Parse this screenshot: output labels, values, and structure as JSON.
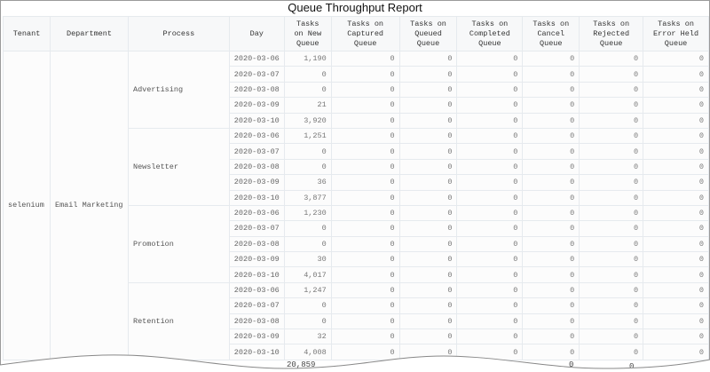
{
  "title": "Queue Throughput Report",
  "columns": [
    "Tenant",
    "Department",
    "Process",
    "Day",
    "Tasks\non New\nQueue",
    "Tasks on\nCaptured\nQueue",
    "Tasks on\nQueued\nQueue",
    "Tasks on\nCompleted\nQueue",
    "Tasks on\nCancel\nQueue",
    "Tasks on\nRejected\nQueue",
    "Tasks on\nError Held\nQueue"
  ],
  "tenant": "selenium",
  "department": "Email Marketing",
  "processes": [
    {
      "name": "Advertising",
      "rows": [
        [
          "2020-03-06",
          "1,190"
        ],
        [
          "2020-03-07",
          "0"
        ],
        [
          "2020-03-08",
          "0"
        ],
        [
          "2020-03-09",
          "21"
        ],
        [
          "2020-03-10",
          "3,920"
        ]
      ]
    },
    {
      "name": "Newsletter",
      "rows": [
        [
          "2020-03-06",
          "1,251"
        ],
        [
          "2020-03-07",
          "0"
        ],
        [
          "2020-03-08",
          "0"
        ],
        [
          "2020-03-09",
          "36"
        ],
        [
          "2020-03-10",
          "3,877"
        ]
      ]
    },
    {
      "name": "Promotion",
      "rows": [
        [
          "2020-03-06",
          "1,230"
        ],
        [
          "2020-03-07",
          "0"
        ],
        [
          "2020-03-08",
          "0"
        ],
        [
          "2020-03-09",
          "30"
        ],
        [
          "2020-03-10",
          "4,017"
        ]
      ]
    },
    {
      "name": "Retention",
      "rows": [
        [
          "2020-03-06",
          "1,247"
        ],
        [
          "2020-03-07",
          "0"
        ],
        [
          "2020-03-08",
          "0"
        ],
        [
          "2020-03-09",
          "32"
        ],
        [
          "2020-03-10",
          "4,008"
        ]
      ]
    }
  ],
  "other_queue_value": "0",
  "totals": {
    "new": "20,859",
    "cancel": "0",
    "rejected": "0"
  }
}
